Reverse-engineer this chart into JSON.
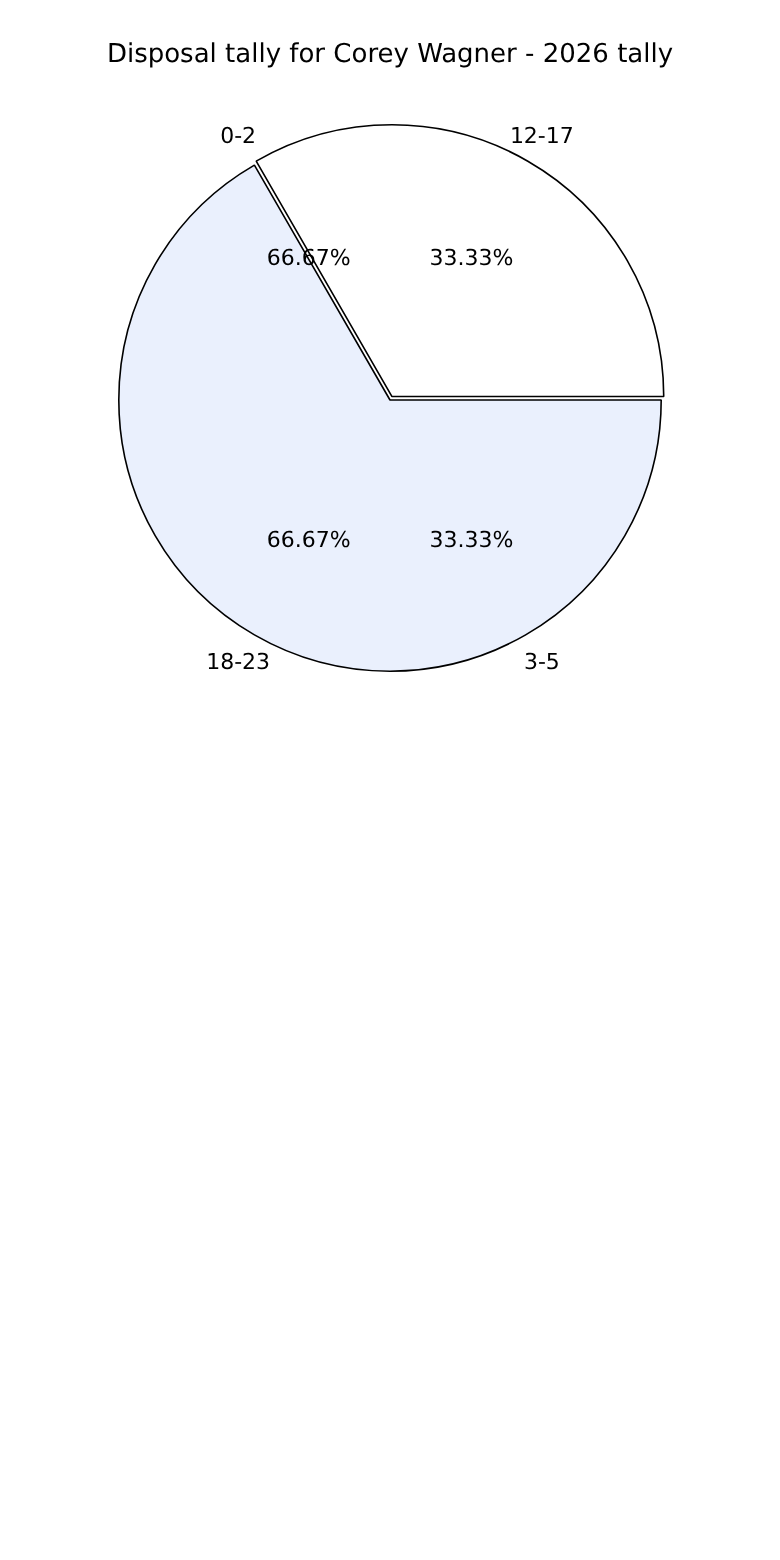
{
  "chart_data": {
    "type": "pie",
    "title": "Disposal tally for Corey Wagner - 2026 tally",
    "categories": [
      "0-2",
      "12-17",
      "18-23",
      "3-5"
    ],
    "values": [
      0,
      33.33,
      66.67,
      0
    ],
    "colors": [
      "#ffffff",
      "#ffffff",
      "#eaf0fd",
      "#ffffff"
    ],
    "value_labels": [
      null,
      "33.33%",
      "66.67%",
      null
    ],
    "annotations": [
      "66.67%",
      "33.33%"
    ],
    "legend": false
  }
}
